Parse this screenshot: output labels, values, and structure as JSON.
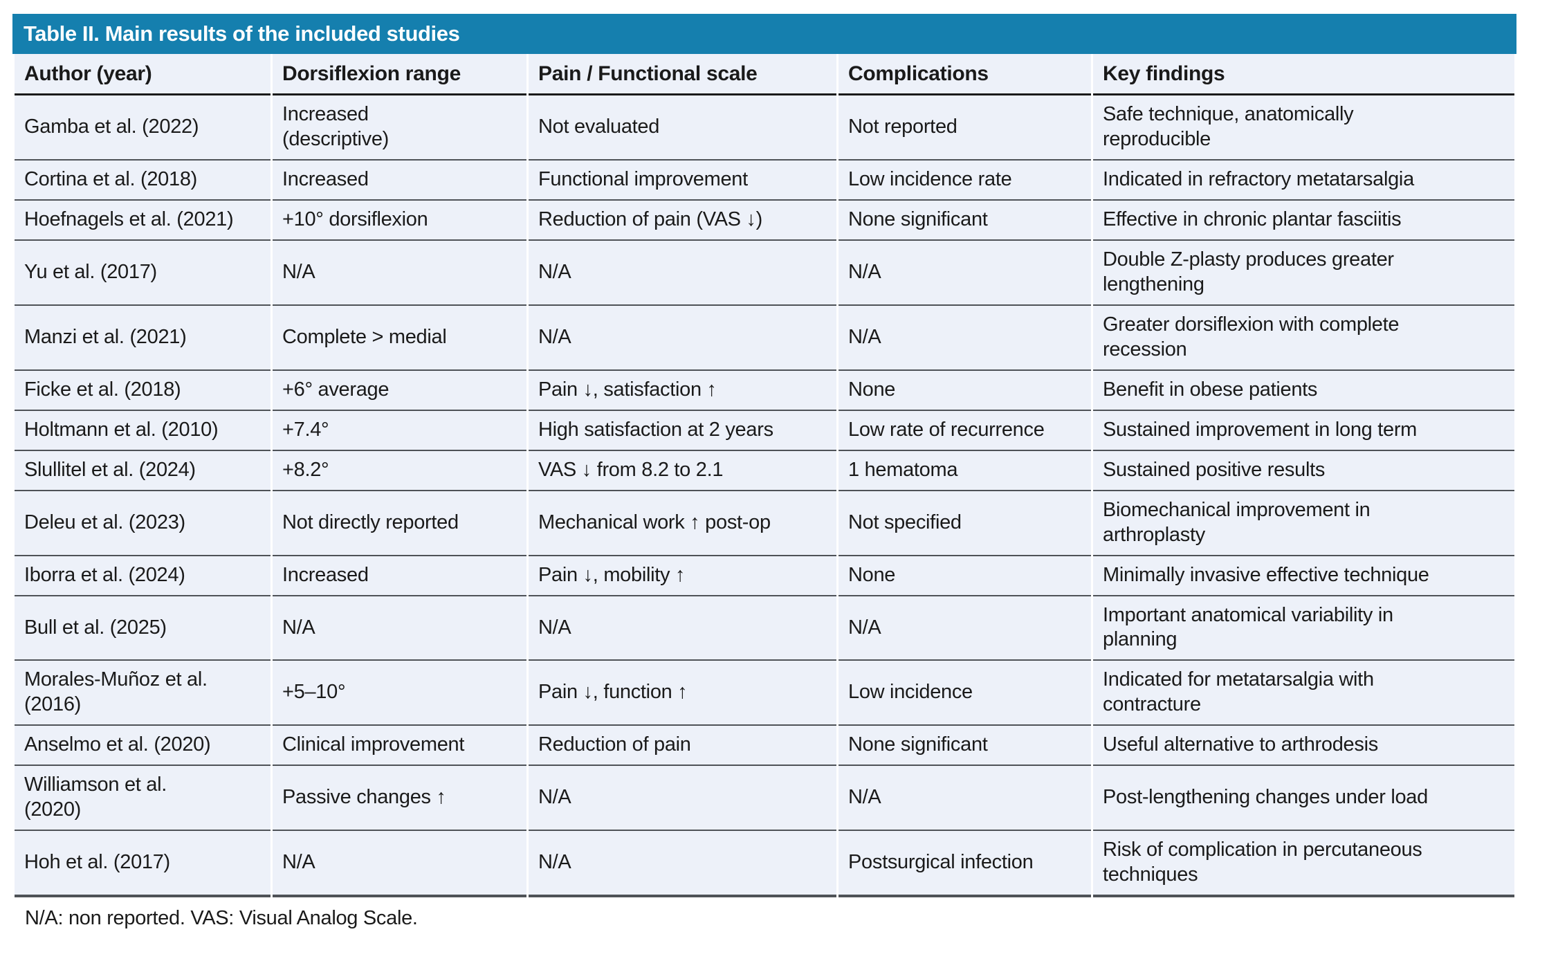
{
  "table": {
    "title": "Table II. Main results of the included studies",
    "columns": [
      "Author (year)",
      "Dorsiflexion range",
      "Pain / Functional scale",
      "Complications",
      "Key findings"
    ],
    "rows": [
      [
        "Gamba et al. (2022)",
        "Increased\n(descriptive)",
        "Not evaluated",
        "Not reported",
        "Safe technique, anatomically\nreproducible"
      ],
      [
        "Cortina et al. (2018)",
        "Increased",
        "Functional improvement",
        "Low incidence rate",
        "Indicated in refractory metatarsalgia"
      ],
      [
        "Hoefnagels et al. (2021)",
        "+10° dorsiflexion",
        "Reduction of pain (VAS ↓)",
        "None significant",
        "Effective in chronic plantar fasciitis"
      ],
      [
        "Yu et al. (2017)",
        "N/A",
        "N/A",
        "N/A",
        "Double Z-plasty produces greater\nlengthening"
      ],
      [
        "Manzi et al. (2021)",
        "Complete > medial",
        "N/A",
        "N/A",
        "Greater dorsiflexion with complete\nrecession"
      ],
      [
        "Ficke et al. (2018)",
        "+6° average",
        "Pain ↓, satisfaction ↑",
        "None",
        "Benefit in obese patients"
      ],
      [
        "Holtmann et al. (2010)",
        "+7.4°",
        "High satisfaction at 2 years",
        "Low rate of recurrence",
        "Sustained improvement in long term"
      ],
      [
        "Slullitel et al. (2024)",
        "+8.2°",
        "VAS ↓ from 8.2 to 2.1",
        "1 hematoma",
        "Sustained positive results"
      ],
      [
        "Deleu et al. (2023)",
        "Not directly reported",
        "Mechanical work ↑ post-op",
        "Not specified",
        "Biomechanical improvement in\narthroplasty"
      ],
      [
        "Iborra et al. (2024)",
        "Increased",
        "Pain ↓, mobility ↑",
        "None",
        "Minimally invasive effective technique"
      ],
      [
        "Bull et al. (2025)",
        "N/A",
        "N/A",
        "N/A",
        "Important anatomical variability in\nplanning"
      ],
      [
        "Morales-Muñoz et al.\n(2016)",
        "+5–10°",
        "Pain ↓, function ↑",
        "Low incidence",
        "Indicated for metatarsalgia with\ncontracture"
      ],
      [
        "Anselmo et al. (2020)",
        "Clinical improvement",
        "Reduction of pain",
        "None significant",
        "Useful alternative to arthrodesis"
      ],
      [
        "Williamson et al.\n(2020)",
        "Passive changes ↑",
        "N/A",
        "N/A",
        "Post-lengthening changes under load"
      ],
      [
        "Hoh et al. (2017)",
        "N/A",
        "N/A",
        "Postsurgical infection",
        "Risk of complication in percutaneous\ntechniques"
      ]
    ],
    "footnote": "N/A: non reported. VAS: Visual Analog Scale."
  },
  "colors": {
    "title_bar": "#157fae",
    "title_text": "#ffffff",
    "row_background": "#edf1f9",
    "body_text": "#1a1a1a",
    "header_rule": "#1a1a1a",
    "divider": "#4e5257",
    "page_background": "#ffffff"
  }
}
